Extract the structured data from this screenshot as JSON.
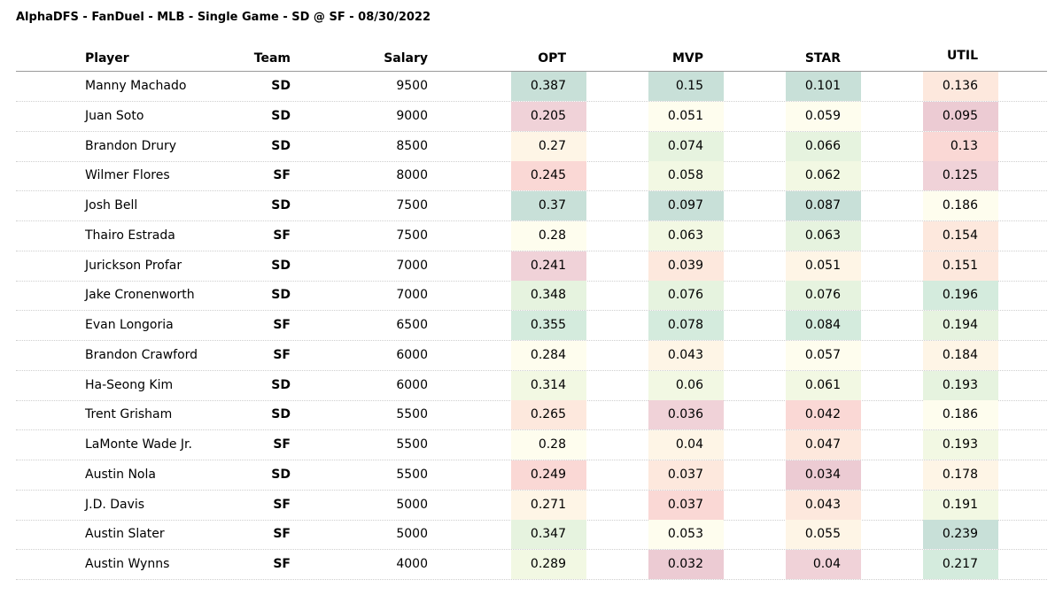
{
  "title": "AlphaDFS - FanDuel - MLB - Single Game - SD @ SF - 08/30/2022",
  "colors": {
    "bg_c0": "#c8e0d8",
    "bg_c1": "#d4ebdd",
    "bg_c2": "#e6f3df",
    "bg_c3": "#f2f8e3",
    "bg_c4": "#fefdee",
    "bg_c5": "#fef5e6",
    "bg_c6": "#fde8dd",
    "bg_c7": "#fad8d5",
    "bg_c8": "#f0d2d8",
    "bg_c9": "#eccbd3"
  },
  "chart_data": {
    "type": "table",
    "columns": [
      "Player",
      "Team",
      "Salary",
      "OPT",
      "MVP",
      "STAR",
      "UTIL"
    ],
    "rows": [
      {
        "player": "Manny Machado",
        "team": "SD",
        "salary": "9500",
        "opt": "0.387",
        "mvp": "0.15",
        "star": "0.101",
        "util": "0.136",
        "opt_bg": "#c8e0d8",
        "mvp_bg": "#c8e0d8",
        "star_bg": "#c8e0d8",
        "util_bg": "#fde8dd"
      },
      {
        "player": "Juan Soto",
        "team": "SD",
        "salary": "9000",
        "opt": "0.205",
        "mvp": "0.051",
        "star": "0.059",
        "util": "0.095",
        "opt_bg": "#f0d2d8",
        "mvp_bg": "#fefdee",
        "star_bg": "#fefdee",
        "util_bg": "#eccbd3"
      },
      {
        "player": "Brandon Drury",
        "team": "SD",
        "salary": "8500",
        "opt": "0.27",
        "mvp": "0.074",
        "star": "0.066",
        "util": "0.13",
        "opt_bg": "#fef5e6",
        "mvp_bg": "#e6f3df",
        "star_bg": "#e6f3df",
        "util_bg": "#fad8d5"
      },
      {
        "player": "Wilmer Flores",
        "team": "SF",
        "salary": "8000",
        "opt": "0.245",
        "mvp": "0.058",
        "star": "0.062",
        "util": "0.125",
        "opt_bg": "#fad8d5",
        "mvp_bg": "#f2f8e3",
        "star_bg": "#f2f8e3",
        "util_bg": "#f0d2d8"
      },
      {
        "player": "Josh Bell",
        "team": "SD",
        "salary": "7500",
        "opt": "0.37",
        "mvp": "0.097",
        "star": "0.087",
        "util": "0.186",
        "opt_bg": "#c8e0d8",
        "mvp_bg": "#c8e0d8",
        "star_bg": "#c8e0d8",
        "util_bg": "#fefdee"
      },
      {
        "player": "Thairo Estrada",
        "team": "SF",
        "salary": "7500",
        "opt": "0.28",
        "mvp": "0.063",
        "star": "0.063",
        "util": "0.154",
        "opt_bg": "#fefdee",
        "mvp_bg": "#f2f8e3",
        "star_bg": "#e6f3df",
        "util_bg": "#fde8dd"
      },
      {
        "player": "Jurickson Profar",
        "team": "SD",
        "salary": "7000",
        "opt": "0.241",
        "mvp": "0.039",
        "star": "0.051",
        "util": "0.151",
        "opt_bg": "#f0d2d8",
        "mvp_bg": "#fde8dd",
        "star_bg": "#fef5e6",
        "util_bg": "#fde8dd"
      },
      {
        "player": "Jake Cronenworth",
        "team": "SD",
        "salary": "7000",
        "opt": "0.348",
        "mvp": "0.076",
        "star": "0.076",
        "util": "0.196",
        "opt_bg": "#e6f3df",
        "mvp_bg": "#e6f3df",
        "star_bg": "#e6f3df",
        "util_bg": "#d4ebdd"
      },
      {
        "player": "Evan Longoria",
        "team": "SF",
        "salary": "6500",
        "opt": "0.355",
        "mvp": "0.078",
        "star": "0.084",
        "util": "0.194",
        "opt_bg": "#d4ebdd",
        "mvp_bg": "#d4ebdd",
        "star_bg": "#d4ebdd",
        "util_bg": "#e6f3df"
      },
      {
        "player": "Brandon Crawford",
        "team": "SF",
        "salary": "6000",
        "opt": "0.284",
        "mvp": "0.043",
        "star": "0.057",
        "util": "0.184",
        "opt_bg": "#fefdee",
        "mvp_bg": "#fef5e6",
        "star_bg": "#fefdee",
        "util_bg": "#fef5e6"
      },
      {
        "player": "Ha-Seong Kim",
        "team": "SD",
        "salary": "6000",
        "opt": "0.314",
        "mvp": "0.06",
        "star": "0.061",
        "util": "0.193",
        "opt_bg": "#f2f8e3",
        "mvp_bg": "#f2f8e3",
        "star_bg": "#f2f8e3",
        "util_bg": "#e6f3df"
      },
      {
        "player": "Trent Grisham",
        "team": "SD",
        "salary": "5500",
        "opt": "0.265",
        "mvp": "0.036",
        "star": "0.042",
        "util": "0.186",
        "opt_bg": "#fde8dd",
        "mvp_bg": "#f0d2d8",
        "star_bg": "#fad8d5",
        "util_bg": "#fefdee"
      },
      {
        "player": "LaMonte Wade Jr.",
        "team": "SF",
        "salary": "5500",
        "opt": "0.28",
        "mvp": "0.04",
        "star": "0.047",
        "util": "0.193",
        "opt_bg": "#fefdee",
        "mvp_bg": "#fef5e6",
        "star_bg": "#fde8dd",
        "util_bg": "#f2f8e3"
      },
      {
        "player": "Austin Nola",
        "team": "SD",
        "salary": "5500",
        "opt": "0.249",
        "mvp": "0.037",
        "star": "0.034",
        "util": "0.178",
        "opt_bg": "#fad8d5",
        "mvp_bg": "#fde8dd",
        "star_bg": "#eccbd3",
        "util_bg": "#fef5e6"
      },
      {
        "player": "J.D. Davis",
        "team": "SF",
        "salary": "5000",
        "opt": "0.271",
        "mvp": "0.037",
        "star": "0.043",
        "util": "0.191",
        "opt_bg": "#fef5e6",
        "mvp_bg": "#fad8d5",
        "star_bg": "#fde8dd",
        "util_bg": "#f2f8e3"
      },
      {
        "player": "Austin Slater",
        "team": "SF",
        "salary": "5000",
        "opt": "0.347",
        "mvp": "0.053",
        "star": "0.055",
        "util": "0.239",
        "opt_bg": "#e6f3df",
        "mvp_bg": "#fefdee",
        "star_bg": "#fef5e6",
        "util_bg": "#c8e0d8"
      },
      {
        "player": "Austin Wynns",
        "team": "SF",
        "salary": "4000",
        "opt": "0.289",
        "mvp": "0.032",
        "star": "0.04",
        "util": "0.217",
        "opt_bg": "#f2f8e3",
        "mvp_bg": "#eccbd3",
        "star_bg": "#f0d2d8",
        "util_bg": "#d4ebdd"
      }
    ]
  }
}
